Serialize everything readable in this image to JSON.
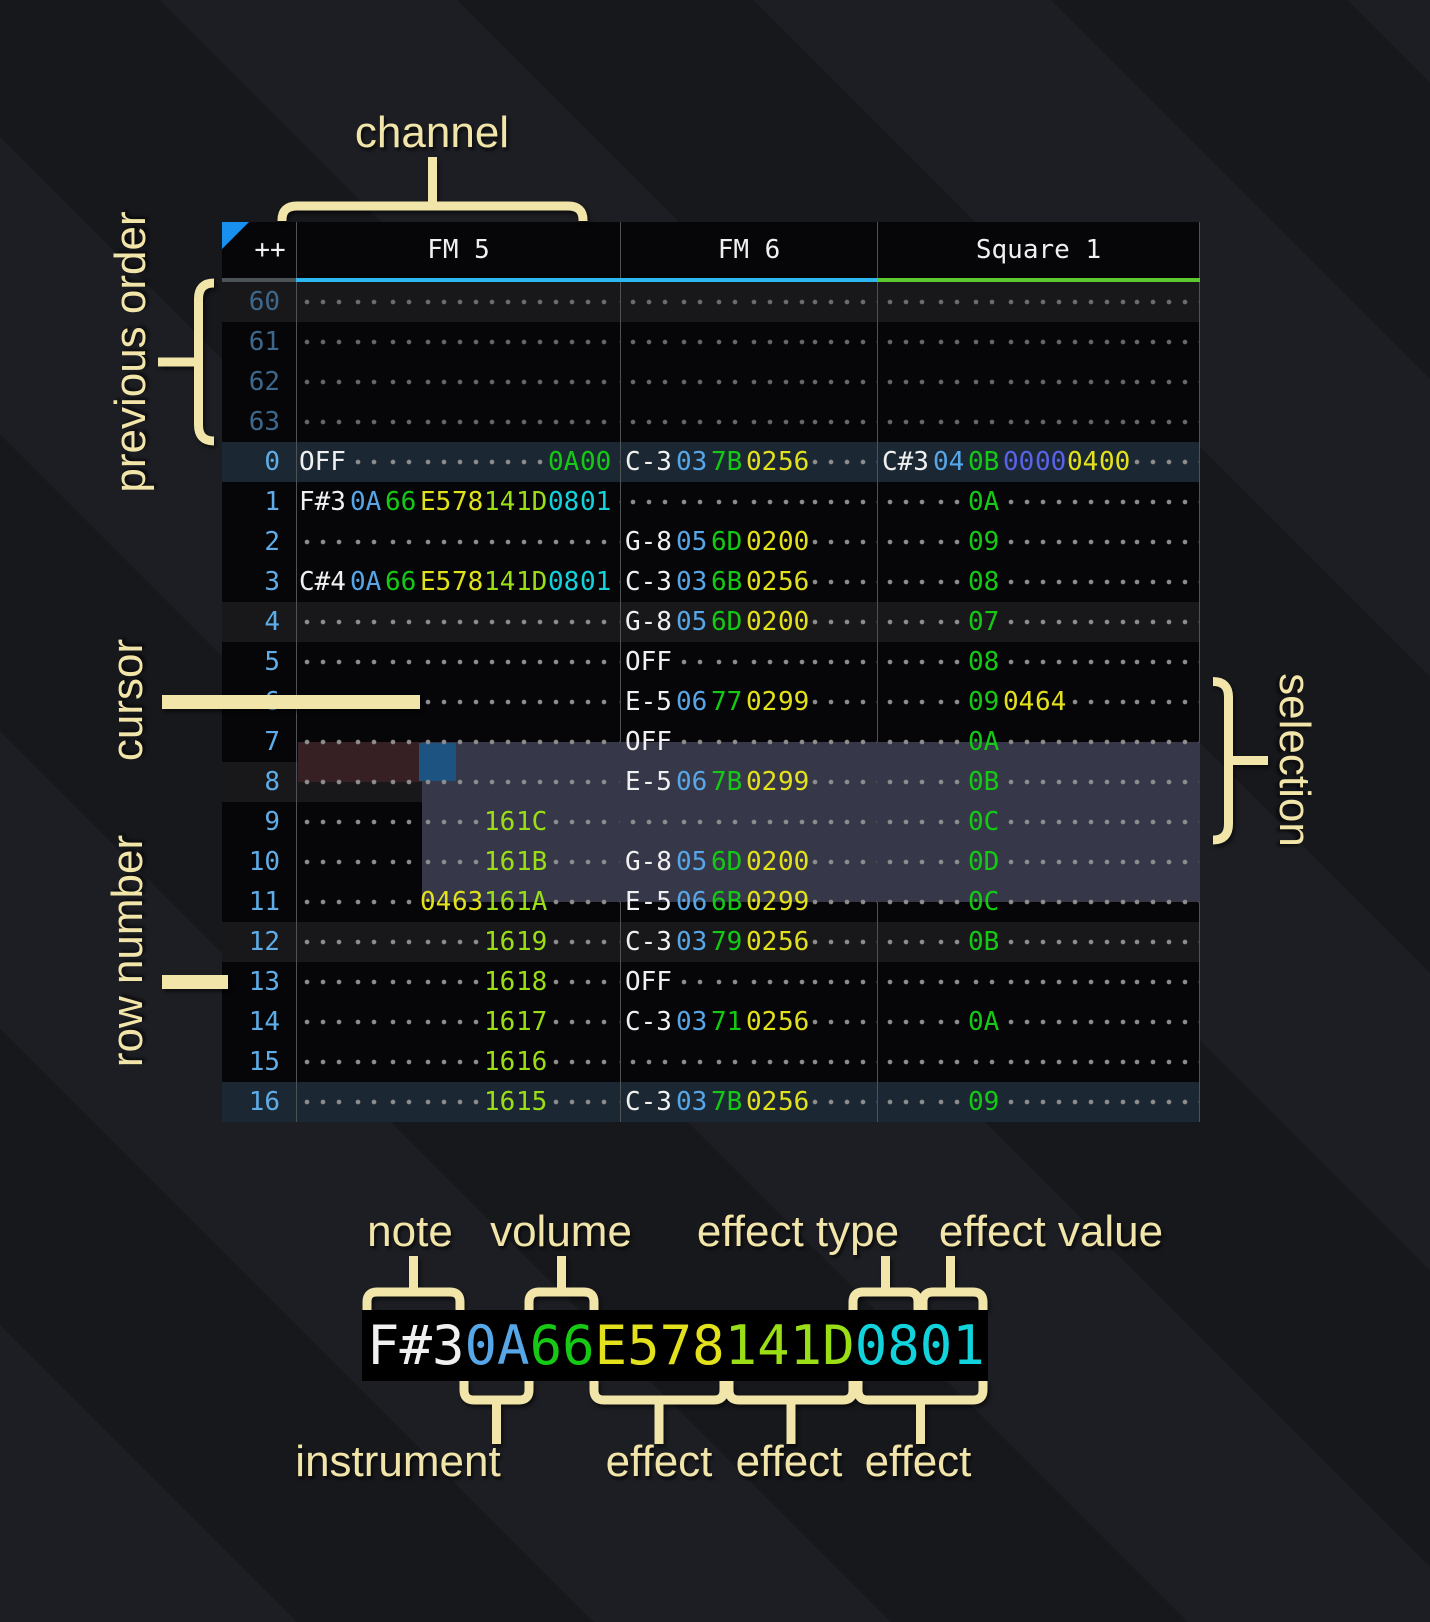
{
  "palette": {
    "cream": "#f2e5a9",
    "black": "#060608",
    "border": "#4d5257",
    "tri": "#1890f0",
    "rownum": "#5eade8",
    "rownumdim": "#3d688c",
    "dots": "#8d8d8d",
    "maroon": "#372023",
    "selbg": "#363849",
    "curbg": "#1d5381",
    "h4": "#18181b",
    "h16": "#1b2834",
    "w": "#f0f0f0",
    "i": "#57a7e8",
    "v": "#15c915",
    "y": "#e3e11c",
    "g": "#9ade16",
    "c": "#12d3dc",
    "p": "#5a62e8"
  },
  "annotations": {
    "channel": "channel",
    "previous_order": "previous order",
    "cursor": "cursor",
    "selection": "selection",
    "row_number": "row number"
  },
  "legend": {
    "top_labels": [
      "note",
      "volume",
      "effect type",
      "effect value"
    ],
    "bottom_labels": [
      "instrument",
      "effect",
      "effect",
      "effect"
    ],
    "cell_segments": [
      [
        "F#3",
        "w"
      ],
      [
        "0A",
        "i"
      ],
      [
        "66",
        "v"
      ],
      [
        "E578",
        "y"
      ],
      [
        "141D",
        "g"
      ],
      [
        "0801",
        "c"
      ]
    ]
  },
  "tracker": {
    "corner": "++",
    "channels": [
      {
        "name": "FM 5",
        "accent": "#2eb8f2"
      },
      {
        "name": "FM 6",
        "accent": "#2eb8f2"
      },
      {
        "name": "Square 1",
        "accent": "#5cca2e"
      }
    ],
    "rows": [
      {
        "num": "60",
        "prev": true,
        "hl": "h4",
        "c1": [],
        "c2": [],
        "c3": []
      },
      {
        "num": "61",
        "prev": true,
        "hl": "",
        "c1": [],
        "c2": [],
        "c3": []
      },
      {
        "num": "62",
        "prev": true,
        "hl": "",
        "c1": [],
        "c2": [],
        "c3": []
      },
      {
        "num": "63",
        "prev": true,
        "hl": "",
        "c1": [],
        "c2": [],
        "c3": []
      },
      {
        "num": "0",
        "hl": "h16",
        "c1": [
          [
            "OFF",
            "w"
          ],
          null,
          null,
          null,
          null,
          null,
          null,
          [
            "0A",
            "v"
          ],
          [
            "00",
            "v"
          ]
        ],
        "c2": [
          [
            "C-3",
            "w"
          ],
          [
            "03",
            "i"
          ],
          [
            "7B",
            "v"
          ],
          [
            "02",
            "y"
          ],
          [
            "56",
            "y"
          ]
        ],
        "c3": [
          [
            "C#3",
            "w"
          ],
          [
            "04",
            "i"
          ],
          [
            "0B",
            "v"
          ],
          [
            "00",
            "p"
          ],
          [
            "00",
            "p"
          ],
          [
            "04",
            "y"
          ],
          [
            "00",
            "y"
          ]
        ]
      },
      {
        "num": "1",
        "hl": "",
        "c1": [
          [
            "F#3",
            "w"
          ],
          [
            "0A",
            "i"
          ],
          [
            "66",
            "v"
          ],
          [
            "E5",
            "y"
          ],
          [
            "78",
            "y"
          ],
          [
            "14",
            "g"
          ],
          [
            "1D",
            "g"
          ],
          [
            "08",
            "c"
          ],
          [
            "01",
            "c"
          ]
        ],
        "c2": [],
        "c3": [
          null,
          null,
          [
            "0A",
            "v"
          ]
        ]
      },
      {
        "num": "2",
        "hl": "",
        "c1": [],
        "c2": [
          [
            "G-8",
            "w"
          ],
          [
            "05",
            "i"
          ],
          [
            "6D",
            "v"
          ],
          [
            "02",
            "y"
          ],
          [
            "00",
            "y"
          ]
        ],
        "c3": [
          null,
          null,
          [
            "09",
            "v"
          ]
        ]
      },
      {
        "num": "3",
        "hl": "",
        "c1": [
          [
            "C#4",
            "w"
          ],
          [
            "0A",
            "i"
          ],
          [
            "66",
            "v"
          ],
          [
            "E5",
            "y"
          ],
          [
            "78",
            "y"
          ],
          [
            "14",
            "g"
          ],
          [
            "1D",
            "g"
          ],
          [
            "08",
            "c"
          ],
          [
            "01",
            "c"
          ]
        ],
        "c2": [
          [
            "C-3",
            "w"
          ],
          [
            "03",
            "i"
          ],
          [
            "6B",
            "v"
          ],
          [
            "02",
            "y"
          ],
          [
            "56",
            "y"
          ]
        ],
        "c3": [
          null,
          null,
          [
            "08",
            "v"
          ]
        ]
      },
      {
        "num": "4",
        "hl": "h4",
        "c1": [],
        "c2": [
          [
            "G-8",
            "w"
          ],
          [
            "05",
            "i"
          ],
          [
            "6D",
            "v"
          ],
          [
            "02",
            "y"
          ],
          [
            "00",
            "y"
          ]
        ],
        "c3": [
          null,
          null,
          [
            "07",
            "v"
          ]
        ]
      },
      {
        "num": "5",
        "hl": "",
        "c1": [],
        "c2": [
          [
            "OFF",
            "w"
          ]
        ],
        "c3": [
          null,
          null,
          [
            "08",
            "v"
          ]
        ]
      },
      {
        "num": "6",
        "hl": "",
        "c1": [],
        "c2": [
          [
            "E-5",
            "w"
          ],
          [
            "06",
            "i"
          ],
          [
            "77",
            "v"
          ],
          [
            "02",
            "y"
          ],
          [
            "99",
            "y"
          ]
        ],
        "c3": [
          null,
          null,
          [
            "09",
            "v"
          ],
          [
            "04",
            "y"
          ],
          [
            "64",
            "y"
          ]
        ]
      },
      {
        "num": "7",
        "hl": "",
        "c1": [],
        "c2": [
          [
            "OFF",
            "w"
          ]
        ],
        "c3": [
          null,
          null,
          [
            "0A",
            "v"
          ]
        ]
      },
      {
        "num": "8",
        "hl": "h4",
        "c1": [],
        "c2": [
          [
            "E-5",
            "w"
          ],
          [
            "06",
            "i"
          ],
          [
            "7B",
            "v"
          ],
          [
            "02",
            "y"
          ],
          [
            "99",
            "y"
          ]
        ],
        "c3": [
          null,
          null,
          [
            "0B",
            "v"
          ]
        ]
      },
      {
        "num": "9",
        "hl": "",
        "c1": [
          null,
          null,
          null,
          null,
          null,
          [
            "16",
            "g"
          ],
          [
            "1C",
            "g"
          ]
        ],
        "c2": [],
        "c3": [
          null,
          null,
          [
            "0C",
            "v"
          ]
        ]
      },
      {
        "num": "10",
        "hl": "",
        "c1": [
          null,
          null,
          null,
          null,
          null,
          [
            "16",
            "g"
          ],
          [
            "1B",
            "g"
          ]
        ],
        "c2": [
          [
            "G-8",
            "w"
          ],
          [
            "05",
            "i"
          ],
          [
            "6D",
            "v"
          ],
          [
            "02",
            "y"
          ],
          [
            "00",
            "y"
          ]
        ],
        "c3": [
          null,
          null,
          [
            "0D",
            "v"
          ]
        ]
      },
      {
        "num": "11",
        "hl": "",
        "c1": [
          null,
          null,
          null,
          [
            "04",
            "y"
          ],
          [
            "63",
            "y"
          ],
          [
            "16",
            "g"
          ],
          [
            "1A",
            "g"
          ]
        ],
        "c2": [
          [
            "E-5",
            "w"
          ],
          [
            "06",
            "i"
          ],
          [
            "6B",
            "v"
          ],
          [
            "02",
            "y"
          ],
          [
            "99",
            "y"
          ]
        ],
        "c3": [
          null,
          null,
          [
            "0C",
            "v"
          ]
        ]
      },
      {
        "num": "12",
        "hl": "h4",
        "c1": [
          null,
          null,
          null,
          null,
          null,
          [
            "16",
            "g"
          ],
          [
            "19",
            "g"
          ]
        ],
        "c2": [
          [
            "C-3",
            "w"
          ],
          [
            "03",
            "i"
          ],
          [
            "79",
            "v"
          ],
          [
            "02",
            "y"
          ],
          [
            "56",
            "y"
          ]
        ],
        "c3": [
          null,
          null,
          [
            "0B",
            "v"
          ]
        ]
      },
      {
        "num": "13",
        "hl": "",
        "c1": [
          null,
          null,
          null,
          null,
          null,
          [
            "16",
            "g"
          ],
          [
            "18",
            "g"
          ]
        ],
        "c2": [
          [
            "OFF",
            "w"
          ]
        ],
        "c3": []
      },
      {
        "num": "14",
        "hl": "",
        "c1": [
          null,
          null,
          null,
          null,
          null,
          [
            "16",
            "g"
          ],
          [
            "17",
            "g"
          ]
        ],
        "c2": [
          [
            "C-3",
            "w"
          ],
          [
            "03",
            "i"
          ],
          [
            "71",
            "v"
          ],
          [
            "02",
            "y"
          ],
          [
            "56",
            "y"
          ]
        ],
        "c3": [
          null,
          null,
          [
            "0A",
            "v"
          ]
        ]
      },
      {
        "num": "15",
        "hl": "",
        "c1": [
          null,
          null,
          null,
          null,
          null,
          [
            "16",
            "g"
          ],
          [
            "16",
            "g"
          ]
        ],
        "c2": [],
        "c3": []
      },
      {
        "num": "16",
        "hl": "h16",
        "c1": [
          null,
          null,
          null,
          null,
          null,
          [
            "16",
            "g"
          ],
          [
            "15",
            "g"
          ]
        ],
        "c2": [
          [
            "C-3",
            "w"
          ],
          [
            "03",
            "i"
          ],
          [
            "7B",
            "v"
          ],
          [
            "02",
            "y"
          ],
          [
            "56",
            "y"
          ]
        ],
        "c3": [
          null,
          null,
          [
            "09",
            "v"
          ]
        ]
      }
    ]
  }
}
